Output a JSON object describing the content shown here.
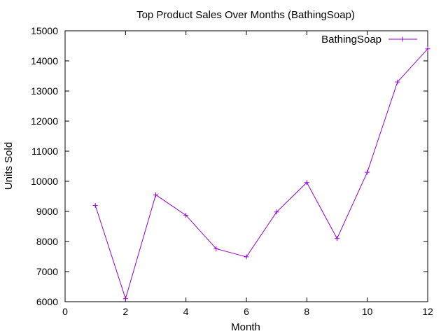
{
  "chart_data": {
    "type": "line",
    "title": "Top Product Sales Over Months (BathingSoap)",
    "xlabel": "Month",
    "ylabel": "Units Sold",
    "xlim": [
      0,
      12
    ],
    "ylim": [
      6000,
      15000
    ],
    "xticks": [
      0,
      2,
      4,
      6,
      8,
      10,
      12
    ],
    "yticks": [
      6000,
      7000,
      8000,
      9000,
      10000,
      11000,
      12000,
      13000,
      14000,
      15000
    ],
    "grid": false,
    "legend_position": "top-right",
    "series": [
      {
        "name": "BathingSoap",
        "color": "#9400d3",
        "marker": "plus",
        "x": [
          1,
          2,
          3,
          4,
          5,
          6,
          7,
          8,
          9,
          10,
          11,
          12
        ],
        "y": [
          9200,
          6100,
          9550,
          8870,
          7760,
          7490,
          8980,
          9960,
          8100,
          10300,
          13300,
          14400
        ]
      }
    ]
  }
}
